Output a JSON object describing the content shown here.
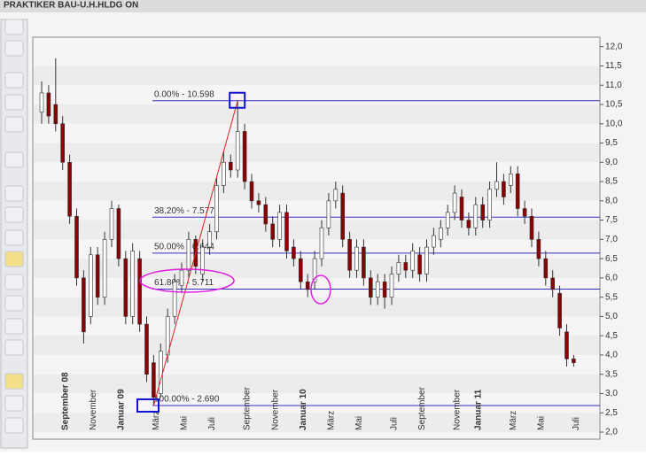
{
  "window_title": "PRAKTIKER BAU-U.H.HLDG ON",
  "chart_data": {
    "type": "candlestick",
    "categories": [
      null,
      null,
      null,
      "September 08",
      null,
      null,
      null,
      "November",
      null,
      null,
      null,
      "Januar 09",
      null,
      null,
      null,
      null,
      "März",
      null,
      null,
      null,
      "Mai",
      null,
      null,
      null,
      "Juli",
      null,
      null,
      null,
      null,
      "September",
      null,
      null,
      null,
      "November",
      null,
      null,
      null,
      "Januar 10",
      null,
      null,
      null,
      "März",
      null,
      null,
      null,
      "Mai",
      null,
      null,
      null,
      null,
      "Juli",
      null,
      null,
      null,
      "September",
      null,
      null,
      null,
      null,
      "November",
      null,
      null,
      "Januar 11",
      null,
      null,
      null,
      null,
      "März",
      null,
      null,
      null,
      "Mai",
      null,
      null,
      null,
      null,
      "Juli"
    ],
    "open": [
      10.3,
      10.8,
      10.5,
      10.0,
      9.0,
      7.6,
      6.0,
      5.0,
      6.6,
      5.5,
      7.0,
      7.8,
      6.5,
      5.0,
      6.5,
      4.8,
      3.8,
      3.0,
      4.0,
      5.0,
      5.8,
      6.2,
      7.0,
      6.1,
      6.8,
      7.2,
      8.4,
      9.0,
      8.8,
      9.8,
      8.5,
      8.0,
      7.9,
      7.4,
      7.0,
      7.7,
      6.8,
      6.5,
      5.9,
      5.9,
      6.5,
      7.3,
      8.0,
      8.2,
      7.0,
      6.2,
      6.8,
      6.0,
      5.5,
      5.9,
      5.5,
      6.1,
      6.4,
      6.2,
      6.6,
      6.1,
      6.8,
      7.0,
      7.3,
      7.7,
      8.1,
      7.5,
      7.3,
      7.9,
      7.5,
      8.3,
      8.5,
      8.4,
      8.7,
      7.8,
      7.6,
      7.0,
      6.5,
      6.0,
      5.6,
      4.6,
      3.9
    ],
    "high": [
      11.1,
      11.0,
      11.7,
      10.2,
      9.2,
      7.8,
      6.2,
      6.8,
      6.8,
      7.2,
      8.0,
      7.9,
      6.7,
      6.9,
      6.7,
      5.0,
      4.0,
      4.3,
      5.2,
      6.1,
      6.4,
      7.2,
      7.1,
      7.0,
      7.4,
      8.6,
      9.3,
      9.2,
      10.6,
      10.0,
      8.7,
      8.2,
      8.1,
      7.6,
      7.9,
      7.9,
      7.0,
      6.7,
      6.1,
      6.7,
      7.5,
      8.2,
      8.5,
      8.4,
      7.2,
      7.0,
      7.0,
      6.2,
      6.1,
      6.1,
      6.3,
      6.6,
      6.6,
      6.9,
      6.8,
      7.0,
      7.3,
      7.5,
      7.9,
      8.4,
      8.3,
      7.7,
      8.1,
      8.1,
      8.5,
      9.0,
      8.7,
      8.9,
      8.9,
      8.0,
      7.8,
      7.2,
      6.7,
      6.2,
      5.8,
      4.8,
      4.0
    ],
    "low": [
      10.0,
      10.0,
      9.8,
      8.8,
      7.4,
      5.8,
      4.3,
      4.8,
      5.3,
      5.3,
      6.8,
      6.3,
      4.8,
      4.8,
      4.6,
      3.3,
      2.69,
      2.9,
      3.8,
      4.8,
      5.6,
      6.0,
      6.1,
      5.9,
      6.6,
      7.0,
      8.2,
      8.6,
      8.6,
      8.3,
      7.8,
      7.7,
      7.2,
      6.8,
      6.8,
      6.5,
      6.3,
      5.7,
      5.5,
      5.7,
      6.3,
      7.1,
      7.8,
      6.8,
      6.0,
      6.0,
      5.8,
      5.3,
      5.3,
      5.2,
      5.3,
      5.9,
      6.0,
      6.0,
      5.9,
      5.9,
      6.6,
      6.8,
      7.1,
      7.5,
      7.3,
      7.1,
      7.1,
      7.3,
      7.3,
      8.1,
      7.9,
      8.2,
      7.6,
      7.4,
      6.8,
      6.3,
      5.8,
      5.5,
      4.5,
      3.7,
      3.7
    ],
    "close": [
      10.8,
      10.2,
      10.0,
      9.0,
      7.6,
      6.0,
      4.6,
      6.6,
      5.5,
      7.0,
      7.8,
      6.5,
      5.0,
      6.7,
      4.8,
      3.5,
      2.9,
      4.1,
      5.0,
      5.9,
      6.2,
      7.0,
      6.3,
      6.8,
      7.2,
      8.4,
      9.0,
      8.8,
      9.8,
      8.5,
      8.0,
      7.9,
      7.4,
      7.0,
      7.7,
      6.7,
      6.5,
      5.9,
      5.7,
      6.5,
      7.3,
      8.0,
      8.3,
      7.0,
      6.2,
      6.8,
      6.0,
      5.5,
      5.9,
      5.5,
      6.1,
      6.4,
      6.2,
      6.7,
      6.1,
      6.8,
      7.1,
      7.3,
      7.7,
      8.2,
      7.5,
      7.3,
      7.9,
      7.5,
      8.3,
      8.5,
      8.1,
      8.7,
      7.8,
      7.6,
      7.0,
      6.5,
      6.0,
      5.7,
      4.7,
      3.9,
      3.8
    ],
    "up_color": "#ffffff",
    "down_color": "#8b0000",
    "ylim": [
      2,
      12.2
    ],
    "yticks": [
      {
        "value": 2,
        "label": "2,0"
      },
      {
        "value": 2.5,
        "label": "2,5"
      },
      {
        "value": 3,
        "label": "3,0"
      },
      {
        "value": 3.5,
        "label": "3,5"
      },
      {
        "value": 4,
        "label": "4,0"
      },
      {
        "value": 4.5,
        "label": "4,5"
      },
      {
        "value": 5,
        "label": "5,0"
      },
      {
        "value": 5.5,
        "label": "5,5"
      },
      {
        "value": 6,
        "label": "6,0"
      },
      {
        "value": 6.5,
        "label": "6,5"
      },
      {
        "value": 7,
        "label": "7,0"
      },
      {
        "value": 7.5,
        "label": "7,5"
      },
      {
        "value": 8,
        "label": "8,0"
      },
      {
        "value": 8.5,
        "label": "8,5"
      },
      {
        "value": 9,
        "label": "9,0"
      },
      {
        "value": 9.5,
        "label": "9,5"
      },
      {
        "value": 10,
        "label": "10,0"
      },
      {
        "value": 10.5,
        "label": "10,5"
      },
      {
        "value": 11,
        "label": "11,0"
      },
      {
        "value": 11.5,
        "label": "11,5"
      },
      {
        "value": 12,
        "label": "12,0"
      }
    ],
    "fib_levels": [
      {
        "value": 10.598,
        "label": "0.00% - 10.598"
      },
      {
        "value": 7.577,
        "label": "38.20% - 7.577"
      },
      {
        "value": 6.644,
        "label": "50.00% - 6.644"
      },
      {
        "value": 5.711,
        "label": "61.80% - 5.711"
      },
      {
        "value": 2.69,
        "label": "100.00% - 2.690"
      }
    ],
    "fib_color": "#3030c0",
    "trend_color": "#e02020"
  }
}
